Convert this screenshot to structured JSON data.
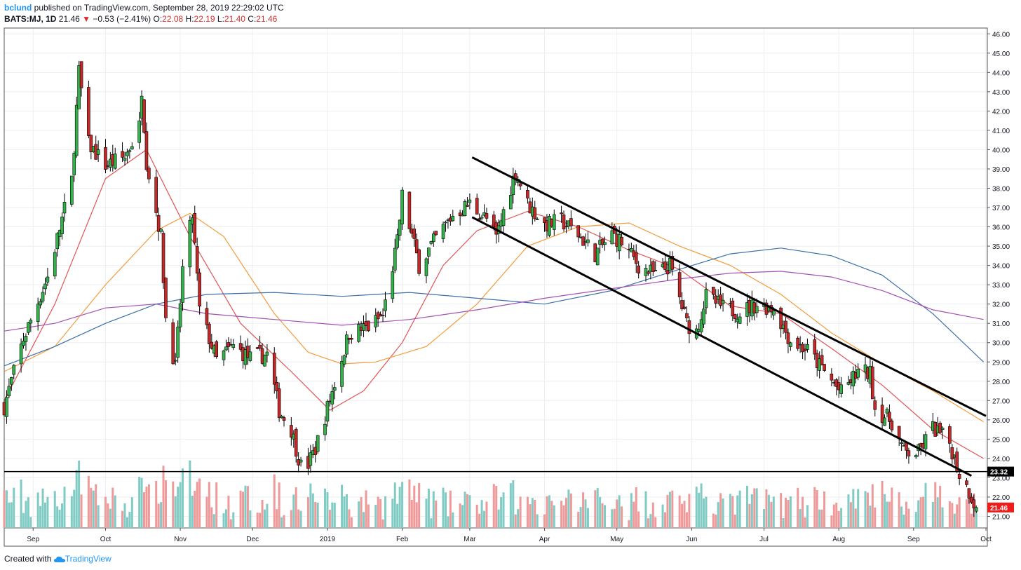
{
  "header": {
    "author": "bclund",
    "published_text": "published on TradingView.com, September 28, 2019 22:29:02 UTC",
    "symbol": "BATS:MJ, 1D",
    "last": "21.46",
    "change_arrow": "▼",
    "change": "−0.53 (−2.41%)",
    "o_label": "O:",
    "o_value": "22.08",
    "h_label": "H:",
    "h_value": "22.19",
    "l_label": "L:",
    "l_value": "21.40",
    "c_label": "C:",
    "c_value": "21.46"
  },
  "footer": {
    "created_with": "Created with",
    "brand": "TradingView",
    "brand_icon": "tradingview-cloud-icon"
  },
  "colors": {
    "up": "#32b34a",
    "down": "#c62828",
    "vol_up": "#80cbc4",
    "vol_down": "#ef9a9a",
    "ma_red": "#e05555",
    "ma_orange": "#f39c3d",
    "ma_blue": "#3d6fa8",
    "ma_purple": "#a550b4",
    "last_price_bg": "#ef1c1c",
    "support_label_bg": "#000000"
  },
  "chart_data": {
    "type": "candlestick",
    "x_ticks": [
      "Sep",
      "Oct",
      "Nov",
      "Dec",
      "2019",
      "Feb",
      "Mar",
      "Apr",
      "May",
      "Jun",
      "Jul",
      "Aug",
      "Sep",
      "Oct"
    ],
    "y_ticks": [
      "21.00",
      "22.00",
      "23.00",
      "24.00",
      "25.00",
      "26.00",
      "27.00",
      "28.00",
      "29.00",
      "30.00",
      "31.00",
      "32.00",
      "33.00",
      "34.00",
      "35.00",
      "36.00",
      "37.00",
      "38.00",
      "39.00",
      "40.00",
      "41.00",
      "42.00",
      "43.00",
      "44.00",
      "45.00",
      "46.00"
    ],
    "ylim": [
      20.4,
      46.3
    ],
    "x_range": [
      "2018-08-20",
      "2019-10-01"
    ],
    "support_level": {
      "value": 23.32,
      "label": "23.32"
    },
    "last_price": {
      "value": 21.46,
      "label": "21.46"
    },
    "channel_upper": [
      [
        "2019-03-02",
        39.6
      ],
      [
        "2019-10-01",
        26.2
      ]
    ],
    "channel_lower": [
      [
        "2019-03-02",
        36.5
      ],
      [
        "2019-09-25",
        23.1
      ]
    ],
    "key_points": [
      {
        "date": "2018-08-20",
        "close": 26.7
      },
      {
        "date": "2018-08-28",
        "close": 30.2
      },
      {
        "date": "2018-09-07",
        "close": 33.4
      },
      {
        "date": "2018-09-17",
        "close": 38.4
      },
      {
        "date": "2018-09-20",
        "close": 44.0
      },
      {
        "date": "2018-09-24",
        "close": 40.3
      },
      {
        "date": "2018-10-01",
        "close": 39.2
      },
      {
        "date": "2018-10-09",
        "close": 39.6
      },
      {
        "date": "2018-10-15",
        "close": 41.2
      },
      {
        "date": "2018-10-16",
        "close": 43.2
      },
      {
        "date": "2018-10-18",
        "close": 39.4
      },
      {
        "date": "2018-10-24",
        "close": 35.5
      },
      {
        "date": "2018-10-26",
        "close": 31.3
      },
      {
        "date": "2018-10-30",
        "close": 28.7
      },
      {
        "date": "2018-11-02",
        "close": 33.8
      },
      {
        "date": "2018-11-06",
        "close": 36.6
      },
      {
        "date": "2018-11-09",
        "close": 31.7
      },
      {
        "date": "2018-11-16",
        "close": 29.1
      },
      {
        "date": "2018-11-23",
        "close": 29.8
      },
      {
        "date": "2018-11-30",
        "close": 29.2
      },
      {
        "date": "2018-12-07",
        "close": 29.4
      },
      {
        "date": "2018-12-12",
        "close": 26.5
      },
      {
        "date": "2018-12-17",
        "close": 25.5
      },
      {
        "date": "2018-12-21",
        "close": 23.6
      },
      {
        "date": "2018-12-24",
        "close": 23.7
      },
      {
        "date": "2018-12-27",
        "close": 24.5
      },
      {
        "date": "2019-01-04",
        "close": 27.9
      },
      {
        "date": "2019-01-10",
        "close": 30.5
      },
      {
        "date": "2019-01-18",
        "close": 30.8
      },
      {
        "date": "2019-01-24",
        "close": 31.4
      },
      {
        "date": "2019-01-30",
        "close": 35.2
      },
      {
        "date": "2019-02-01",
        "close": 37.6
      },
      {
        "date": "2019-02-08",
        "close": 34.0
      },
      {
        "date": "2019-02-15",
        "close": 35.4
      },
      {
        "date": "2019-02-22",
        "close": 36.6
      },
      {
        "date": "2019-03-01",
        "close": 37.2
      },
      {
        "date": "2019-03-08",
        "close": 36.4
      },
      {
        "date": "2019-03-12",
        "close": 35.4
      },
      {
        "date": "2019-03-15",
        "close": 36.8
      },
      {
        "date": "2019-03-20",
        "close": 38.9
      },
      {
        "date": "2019-03-25",
        "close": 37.2
      },
      {
        "date": "2019-04-01",
        "close": 36.1
      },
      {
        "date": "2019-04-08",
        "close": 36.3
      },
      {
        "date": "2019-04-15",
        "close": 35.6
      },
      {
        "date": "2019-04-22",
        "close": 34.6
      },
      {
        "date": "2019-04-29",
        "close": 35.6
      },
      {
        "date": "2019-05-03",
        "close": 35.2
      },
      {
        "date": "2019-05-10",
        "close": 34.0
      },
      {
        "date": "2019-05-17",
        "close": 33.5
      },
      {
        "date": "2019-05-23",
        "close": 34.0
      },
      {
        "date": "2019-05-30",
        "close": 31.0
      },
      {
        "date": "2019-06-03",
        "close": 30.6
      },
      {
        "date": "2019-06-07",
        "close": 32.4
      },
      {
        "date": "2019-06-14",
        "close": 31.8
      },
      {
        "date": "2019-06-21",
        "close": 31.6
      },
      {
        "date": "2019-06-28",
        "close": 32.0
      },
      {
        "date": "2019-07-05",
        "close": 31.8
      },
      {
        "date": "2019-07-12",
        "close": 30.1
      },
      {
        "date": "2019-07-19",
        "close": 29.6
      },
      {
        "date": "2019-07-26",
        "close": 28.5
      },
      {
        "date": "2019-08-02",
        "close": 27.4
      },
      {
        "date": "2019-08-09",
        "close": 28.5
      },
      {
        "date": "2019-08-14",
        "close": 28.4
      },
      {
        "date": "2019-08-16",
        "close": 26.6
      },
      {
        "date": "2019-08-23",
        "close": 25.9
      },
      {
        "date": "2019-08-28",
        "close": 24.3
      },
      {
        "date": "2019-09-03",
        "close": 24.3
      },
      {
        "date": "2019-09-09",
        "close": 25.6
      },
      {
        "date": "2019-09-16",
        "close": 24.8
      },
      {
        "date": "2019-09-20",
        "close": 23.2
      },
      {
        "date": "2019-09-24",
        "close": 22.3
      },
      {
        "date": "2019-09-27",
        "close": 21.46
      }
    ],
    "moving_averages": [
      {
        "color": "#e05555",
        "points": [
          [
            "2018-08-20",
            27.0
          ],
          [
            "2018-09-10",
            32.0
          ],
          [
            "2018-10-01",
            38.5
          ],
          [
            "2018-10-18",
            40.0
          ],
          [
            "2018-11-05",
            35.5
          ],
          [
            "2018-11-26",
            31.0
          ],
          [
            "2018-12-17",
            28.5
          ],
          [
            "2019-01-02",
            26.5
          ],
          [
            "2019-01-16",
            27.5
          ],
          [
            "2019-02-01",
            30.0
          ],
          [
            "2019-02-18",
            34.0
          ],
          [
            "2019-03-04",
            35.8
          ],
          [
            "2019-03-25",
            36.8
          ],
          [
            "2019-04-15",
            36.0
          ],
          [
            "2019-05-06",
            34.8
          ],
          [
            "2019-05-27",
            33.8
          ],
          [
            "2019-06-17",
            31.9
          ],
          [
            "2019-07-08",
            31.5
          ],
          [
            "2019-07-29",
            29.7
          ],
          [
            "2019-08-19",
            27.8
          ],
          [
            "2019-09-09",
            25.5
          ],
          [
            "2019-09-30",
            24.0
          ]
        ]
      },
      {
        "color": "#f39c3d",
        "points": [
          [
            "2018-08-20",
            28.5
          ],
          [
            "2018-09-10",
            29.8
          ],
          [
            "2018-10-01",
            33.0
          ],
          [
            "2018-10-22",
            35.8
          ],
          [
            "2018-11-05",
            36.7
          ],
          [
            "2018-11-19",
            35.5
          ],
          [
            "2018-12-10",
            31.5
          ],
          [
            "2018-12-24",
            29.5
          ],
          [
            "2019-01-07",
            28.9
          ],
          [
            "2019-01-21",
            29.0
          ],
          [
            "2019-02-11",
            29.8
          ],
          [
            "2019-03-04",
            32.0
          ],
          [
            "2019-03-25",
            35.0
          ],
          [
            "2019-04-15",
            36.0
          ],
          [
            "2019-05-06",
            36.2
          ],
          [
            "2019-05-27",
            35.0
          ],
          [
            "2019-06-17",
            34.0
          ],
          [
            "2019-07-08",
            32.5
          ],
          [
            "2019-07-29",
            30.5
          ],
          [
            "2019-08-19",
            28.9
          ],
          [
            "2019-09-09",
            27.5
          ],
          [
            "2019-09-30",
            25.9
          ]
        ]
      },
      {
        "color": "#3d6fa8",
        "points": [
          [
            "2018-08-20",
            28.8
          ],
          [
            "2018-09-10",
            29.8
          ],
          [
            "2018-10-01",
            31.0
          ],
          [
            "2018-10-22",
            32.0
          ],
          [
            "2018-11-12",
            32.5
          ],
          [
            "2018-12-10",
            32.6
          ],
          [
            "2019-01-07",
            32.4
          ],
          [
            "2019-02-04",
            32.6
          ],
          [
            "2019-03-04",
            32.3
          ],
          [
            "2019-04-01",
            32.0
          ],
          [
            "2019-04-29",
            32.7
          ],
          [
            "2019-05-27",
            33.8
          ],
          [
            "2019-06-17",
            34.6
          ],
          [
            "2019-07-08",
            34.9
          ],
          [
            "2019-07-29",
            34.5
          ],
          [
            "2019-08-19",
            33.5
          ],
          [
            "2019-09-09",
            31.5
          ],
          [
            "2019-09-30",
            29.0
          ]
        ]
      },
      {
        "color": "#a550b4",
        "points": [
          [
            "2018-08-20",
            30.6
          ],
          [
            "2018-09-10",
            31.0
          ],
          [
            "2018-10-01",
            31.8
          ],
          [
            "2018-10-22",
            32.0
          ],
          [
            "2018-11-12",
            31.5
          ],
          [
            "2018-12-10",
            31.2
          ],
          [
            "2019-01-07",
            30.9
          ],
          [
            "2019-02-04",
            31.2
          ],
          [
            "2019-03-04",
            31.7
          ],
          [
            "2019-04-01",
            32.3
          ],
          [
            "2019-04-29",
            32.8
          ],
          [
            "2019-05-27",
            33.3
          ],
          [
            "2019-06-17",
            33.6
          ],
          [
            "2019-07-08",
            33.7
          ],
          [
            "2019-07-29",
            33.4
          ],
          [
            "2019-08-19",
            32.7
          ],
          [
            "2019-09-09",
            31.7
          ],
          [
            "2019-09-30",
            31.2
          ]
        ]
      }
    ]
  }
}
